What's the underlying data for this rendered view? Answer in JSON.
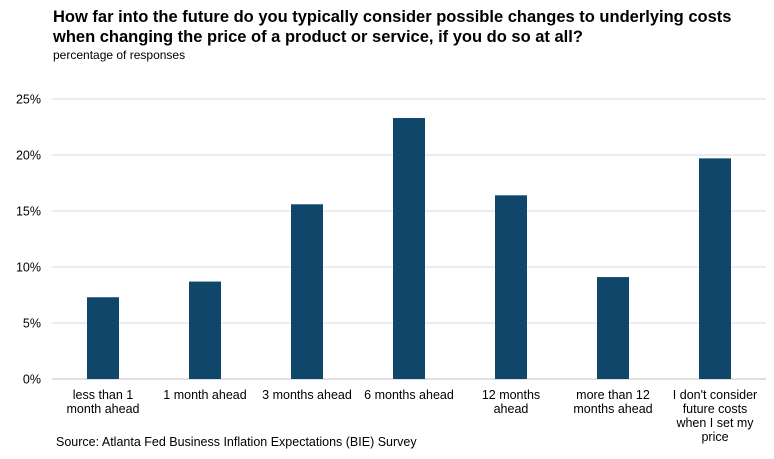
{
  "chart_data": {
    "type": "bar",
    "title": "How far into the future do you typically consider possible changes to underlying costs when changing the price of a product or service, if you do so at all?",
    "subtitle": "percentage of responses",
    "source": "Source: Atlanta Fed Business Inflation Expectations (BIE) Survey",
    "categories": [
      [
        "less than 1",
        "month ahead"
      ],
      [
        "1 month ahead"
      ],
      [
        "3 months ahead"
      ],
      [
        "6 months ahead"
      ],
      [
        "12 months",
        "ahead"
      ],
      [
        "more than 12",
        "months ahead"
      ],
      [
        "I don't consider",
        "future costs",
        "when I set my",
        "price"
      ]
    ],
    "values": [
      7.3,
      8.7,
      15.6,
      23.3,
      16.4,
      9.1,
      19.7
    ],
    "ylim": [
      0,
      25
    ],
    "yticks": [
      0,
      5,
      10,
      15,
      20,
      25
    ],
    "ytick_labels": [
      "0%",
      "5%",
      "10%",
      "15%",
      "20%",
      "25%"
    ],
    "xlabel": "",
    "ylabel": "",
    "grid": true,
    "legend": "none",
    "bar_color": "#10466A",
    "grid_color": "#D9D9D9"
  }
}
